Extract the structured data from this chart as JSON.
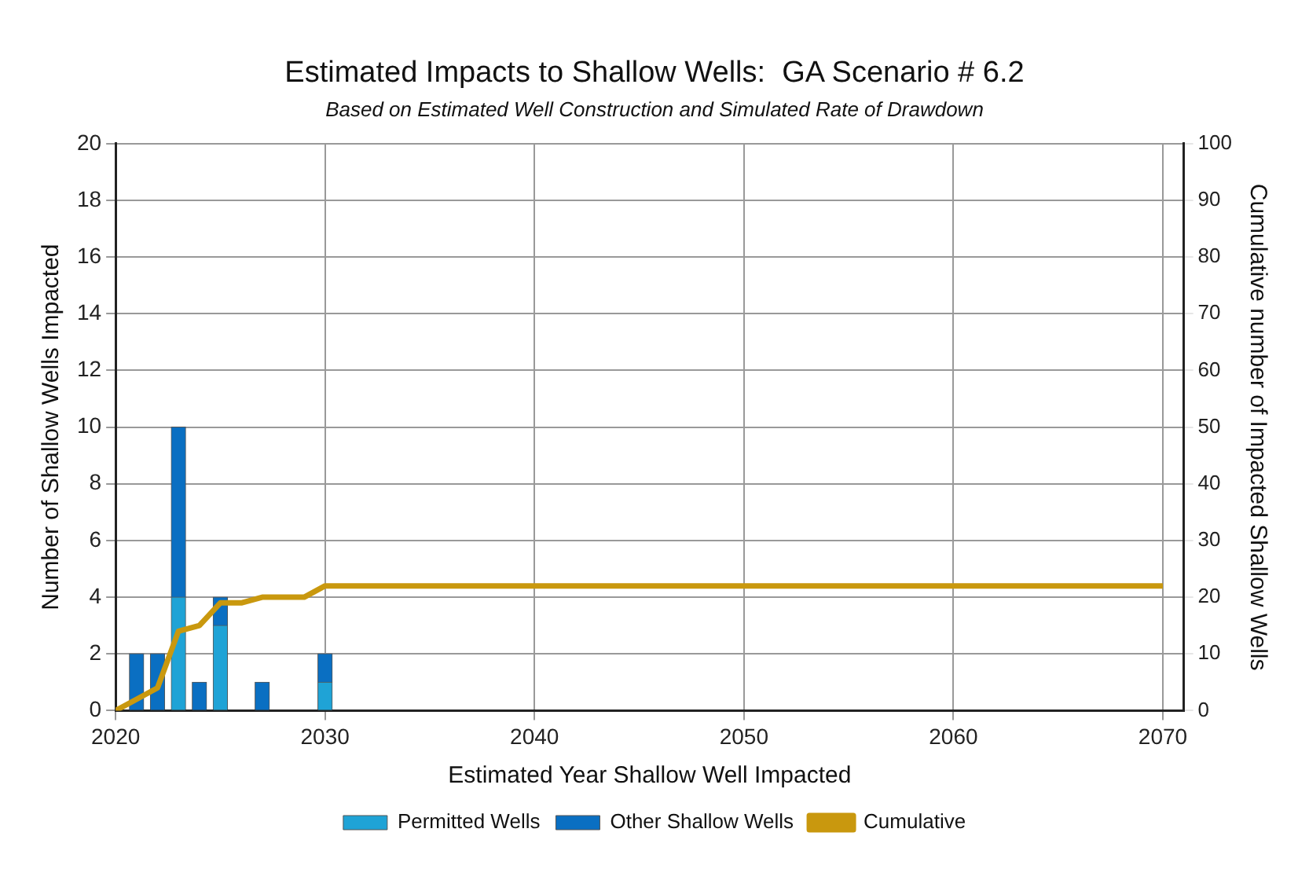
{
  "chart_data": {
    "type": "bar",
    "title": "Estimated Impacts to Shallow Wells:  GA Scenario # 6.2",
    "subtitle": "Based on Estimated Well Construction and Simulated Rate of Drawdown",
    "xlabel": "Estimated Year Shallow Well Impacted",
    "ylabel": "Number of Shallow Wells Impacted",
    "y2label": "Cumulative number of Impacted Shallow Wells",
    "x": [
      2021,
      2022,
      2023,
      2024,
      2025,
      2027,
      2030
    ],
    "stacked": true,
    "series": [
      {
        "name": "Permitted Wells",
        "color": "#1fa3d6",
        "values": [
          0,
          0,
          4,
          0,
          3,
          0,
          1
        ]
      },
      {
        "name": "Other Shallow Wells",
        "color": "#0a6fc2",
        "values": [
          2,
          2,
          6,
          1,
          1,
          1,
          1
        ]
      },
      {
        "name": "Cumulative",
        "type": "line",
        "axis": "y2",
        "color": "#c9980e",
        "x": [
          2020,
          2021,
          2022,
          2023,
          2024,
          2025,
          2026,
          2027,
          2029,
          2030,
          2070
        ],
        "values": [
          0,
          2,
          4,
          14,
          15,
          19,
          19,
          20,
          20,
          22,
          22
        ]
      }
    ],
    "xlim": [
      2020,
      2071
    ],
    "xticks": [
      2020,
      2030,
      2040,
      2050,
      2060,
      2070
    ],
    "ylim": [
      0,
      20
    ],
    "yticks": [
      0,
      2,
      4,
      6,
      8,
      10,
      12,
      14,
      16,
      18,
      20
    ],
    "y2lim": [
      0,
      100
    ],
    "y2ticks": [
      0,
      10,
      20,
      30,
      40,
      50,
      60,
      70,
      80,
      90,
      100
    ],
    "grid": true,
    "legend": "bottom",
    "marker": "none"
  }
}
